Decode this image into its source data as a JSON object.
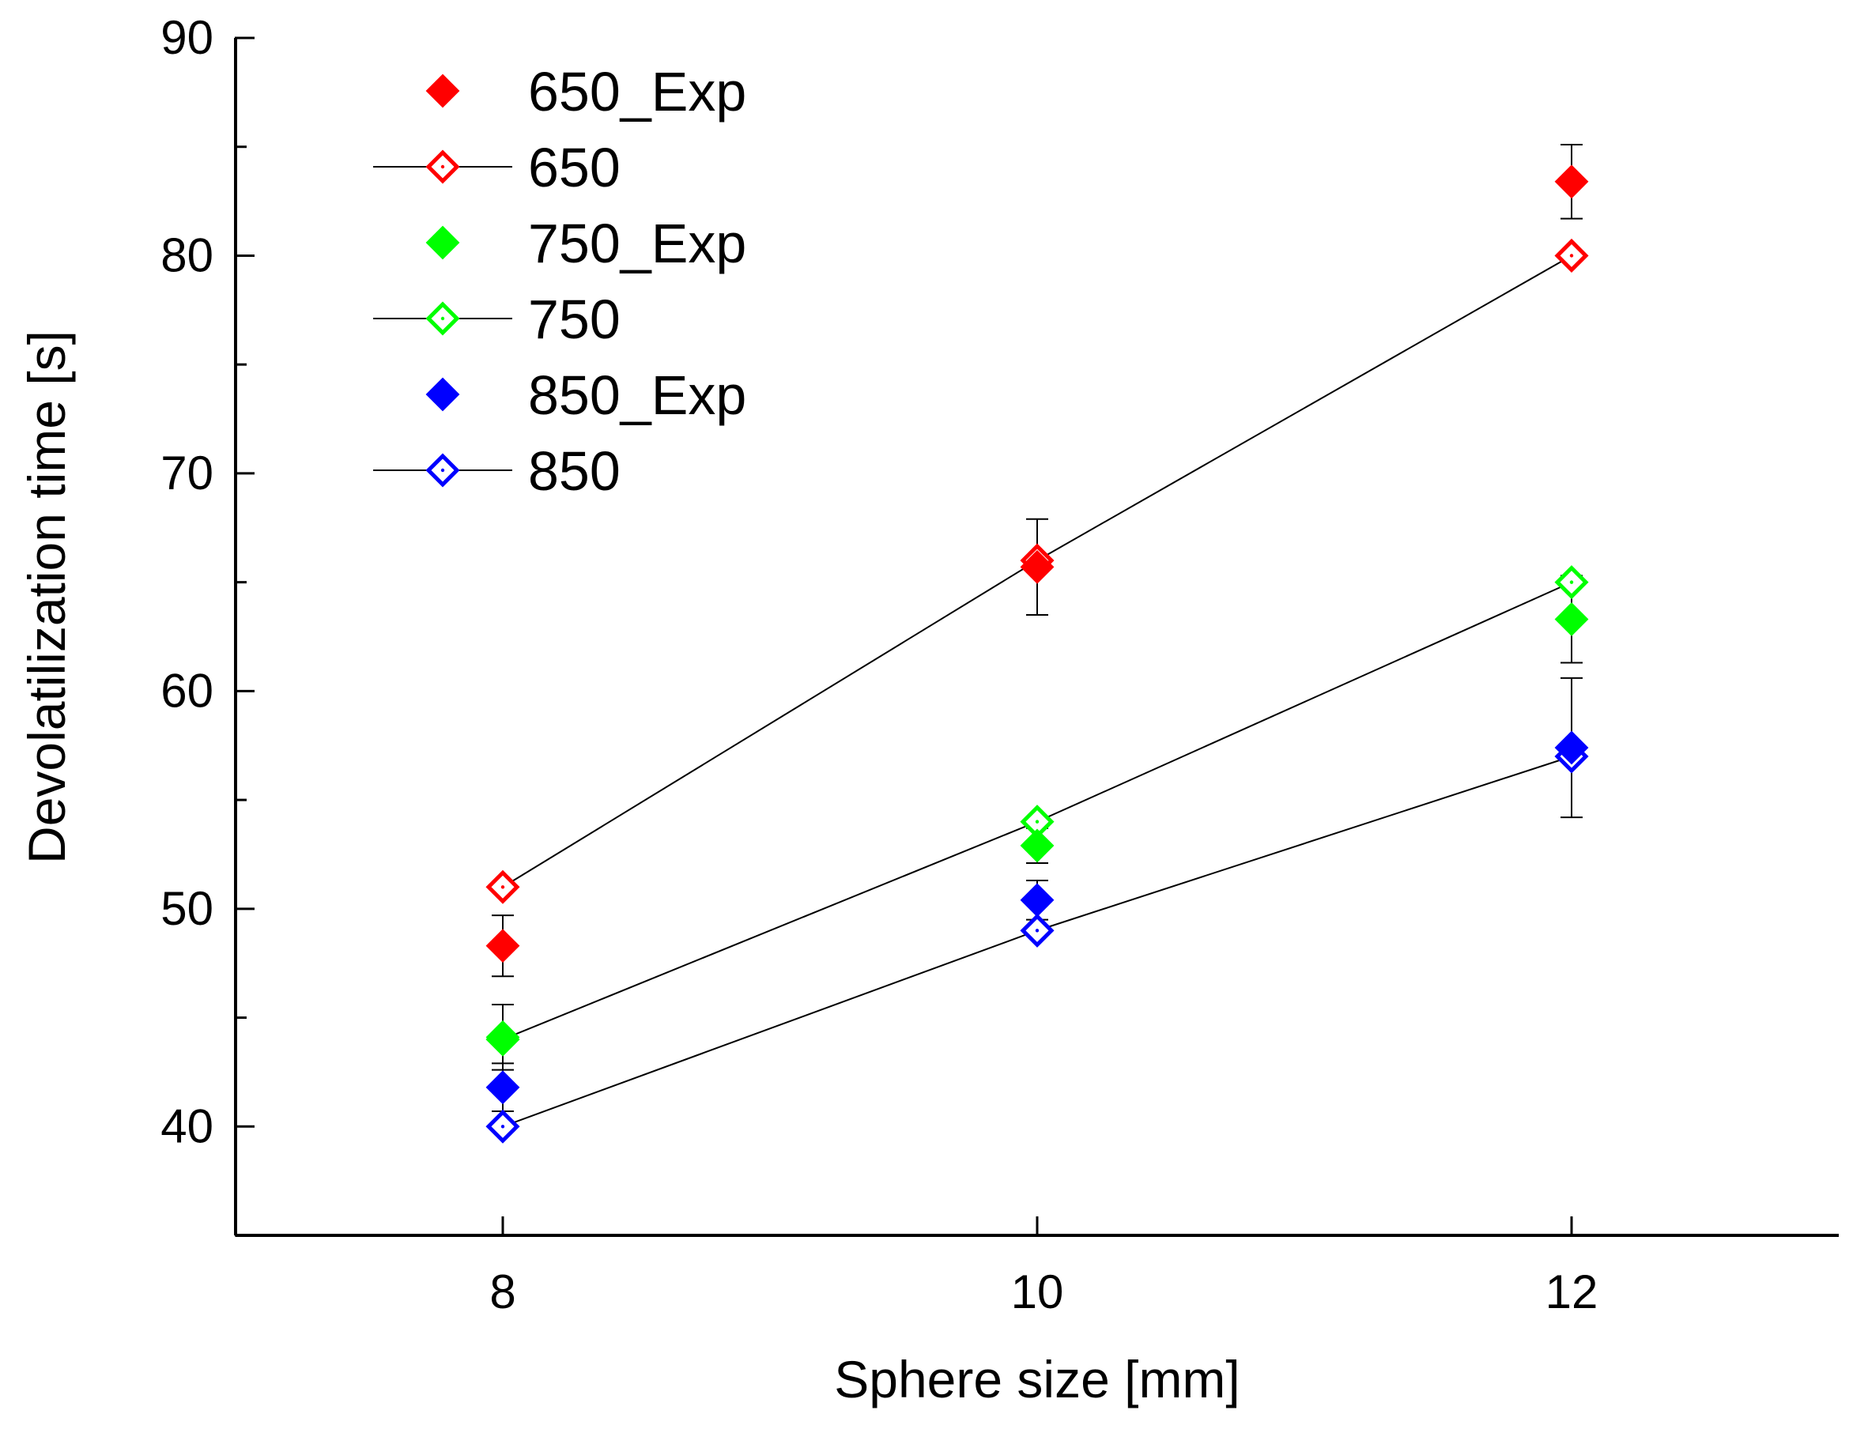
{
  "chart_data": {
    "type": "scatter",
    "xlabel": "Sphere size [mm]",
    "ylabel": "Devolatilization time [s]",
    "xlim": [
      7,
      13
    ],
    "ylim": [
      35,
      90
    ],
    "xticks": [
      8,
      10,
      12
    ],
    "yticks": [
      40,
      50,
      60,
      70,
      80,
      90
    ],
    "legend_position": "top-left",
    "series": [
      {
        "name": "650_Exp",
        "kind": "experiment",
        "marker": "filled-diamond",
        "color": "#ff0000",
        "x": [
          8,
          10,
          12
        ],
        "y": [
          48.3,
          65.7,
          83.4
        ],
        "err": [
          1.4,
          2.2,
          1.7
        ]
      },
      {
        "name": "650",
        "kind": "model",
        "marker": "open-diamond",
        "color": "#ff0000",
        "x": [
          8,
          10,
          12
        ],
        "y": [
          51,
          66,
          80
        ]
      },
      {
        "name": "750_Exp",
        "kind": "experiment",
        "marker": "filled-diamond",
        "color": "#00ff00",
        "x": [
          8,
          10,
          12
        ],
        "y": [
          44.1,
          52.9,
          63.3
        ],
        "err": [
          1.5,
          0.8,
          2.0
        ]
      },
      {
        "name": "750",
        "kind": "model",
        "marker": "open-diamond",
        "color": "#00ff00",
        "x": [
          8,
          10,
          12
        ],
        "y": [
          44,
          54,
          65
        ]
      },
      {
        "name": "850_Exp",
        "kind": "experiment",
        "marker": "filled-diamond",
        "color": "#0000ff",
        "x": [
          8,
          10,
          12
        ],
        "y": [
          41.8,
          50.4,
          57.4
        ],
        "err": [
          1.1,
          0.9,
          3.2
        ]
      },
      {
        "name": "850",
        "kind": "model",
        "marker": "open-diamond",
        "color": "#0000ff",
        "x": [
          8,
          10,
          12
        ],
        "y": [
          40,
          49,
          57
        ]
      }
    ]
  }
}
